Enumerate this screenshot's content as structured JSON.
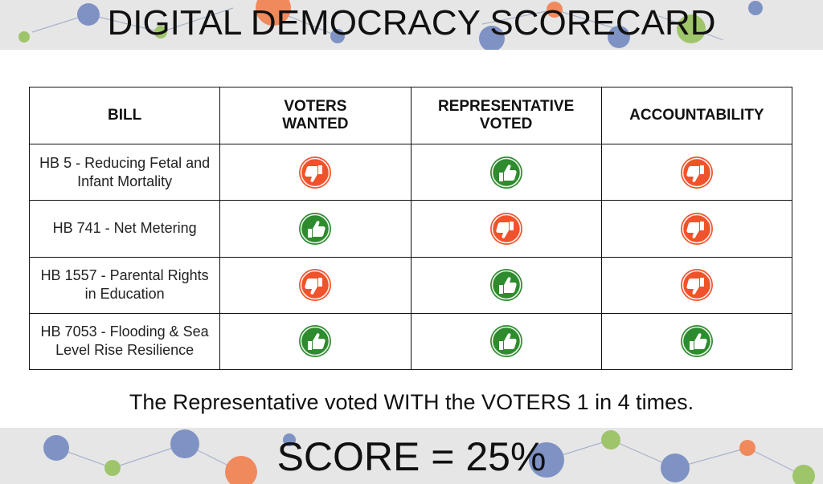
{
  "title": "DIGITAL DEMOCRACY SCORECARD",
  "table": {
    "headers": {
      "bill": "BILL",
      "voters_wanted": "VOTERS WANTED",
      "representative_voted": "REPRESENTATIVE VOTED",
      "accountability": "ACCOUNTABILITY"
    },
    "rows": [
      {
        "bill": "HB 5 - Reducing Fetal and Infant Mortality",
        "voters_wanted": "down",
        "representative_voted": "up",
        "accountability": "down"
      },
      {
        "bill": "HB 741 - Net Metering",
        "voters_wanted": "up",
        "representative_voted": "down",
        "accountability": "down"
      },
      {
        "bill": "HB 1557 - Parental Rights in Education",
        "voters_wanted": "down",
        "representative_voted": "up",
        "accountability": "down"
      },
      {
        "bill": "HB 7053 - Flooding & Sea Level Rise Resilience",
        "voters_wanted": "up",
        "representative_voted": "up",
        "accountability": "up"
      }
    ]
  },
  "summary": "The Representative voted WITH the VOTERS 1 in 4 times.",
  "score": "SCORE = 25%",
  "colors": {
    "thumbs_up": "#2e8b2e",
    "thumbs_down": "#f0532b",
    "band": "#e6e6e6"
  },
  "icons": {
    "up": "thumbs-up-icon",
    "down": "thumbs-down-icon"
  }
}
